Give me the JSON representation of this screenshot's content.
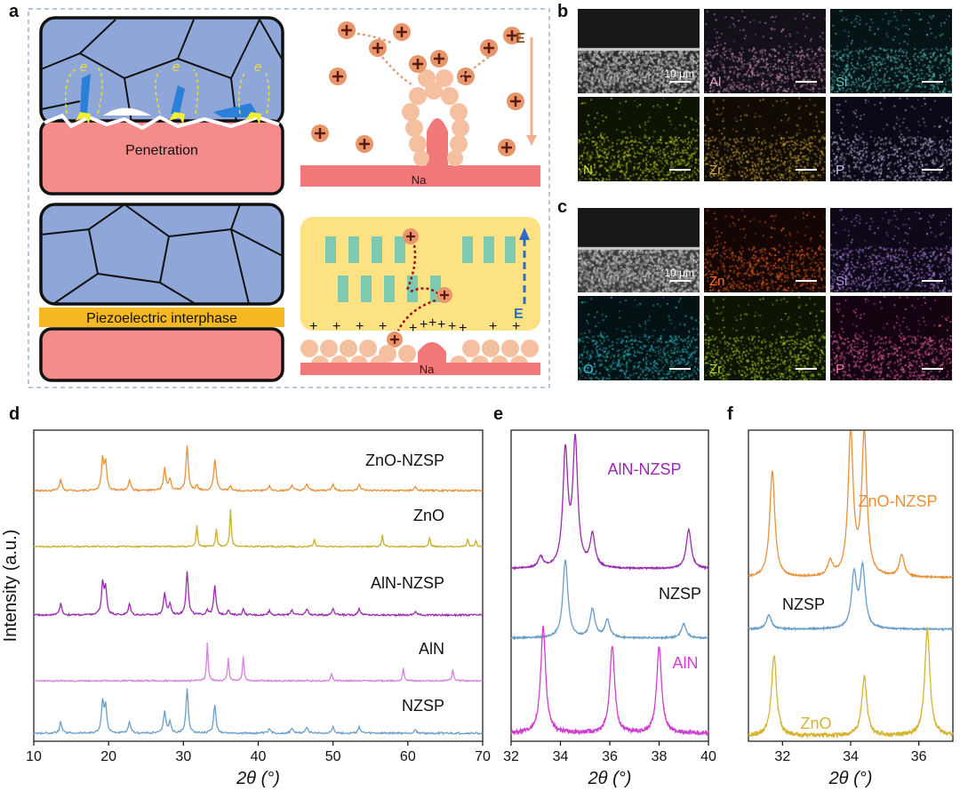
{
  "panels": {
    "a": "a",
    "b": "b",
    "c": "c",
    "d": "d",
    "e": "e",
    "f": "f"
  },
  "schematic": {
    "top_left_label": "Penetration",
    "bottom_left_label": "Piezoelectric interphase",
    "na_label": "Na",
    "field_label": "E",
    "electron_label": "e",
    "electron_sup": "-",
    "plus": "+",
    "minus": "-"
  },
  "eds_b": {
    "scale_text": "10 μm",
    "tiles": [
      {
        "label": "",
        "color": "#ffffff",
        "bg": "#2a2a2a",
        "type": "sem"
      },
      {
        "label": "Al",
        "color": "#e0a0c0",
        "bg": "#141018",
        "type": "map"
      },
      {
        "label": "Si",
        "color": "#5ec8c8",
        "bg": "#061416",
        "type": "map"
      },
      {
        "label": "N",
        "color": "#d8e020",
        "bg": "#0e1404",
        "type": "map"
      },
      {
        "label": "Zr",
        "color": "#e0b040",
        "bg": "#100c04",
        "type": "map"
      },
      {
        "label": "P",
        "color": "#d0c0f0",
        "bg": "#0a0a16",
        "type": "map"
      }
    ]
  },
  "eds_c": {
    "scale_text": "10 μm",
    "tiles": [
      {
        "label": "",
        "color": "#ffffff",
        "bg": "#3a3a3a",
        "type": "sem"
      },
      {
        "label": "Zn",
        "color": "#ff6a20",
        "bg": "#140604",
        "type": "map"
      },
      {
        "label": "Si",
        "color": "#b890f0",
        "bg": "#0e0818",
        "type": "map"
      },
      {
        "label": "O",
        "color": "#30c8d8",
        "bg": "#041214",
        "type": "map"
      },
      {
        "label": "Zr",
        "color": "#b8e020",
        "bg": "#0c1404",
        "type": "map"
      },
      {
        "label": "P",
        "color": "#ff70b0",
        "bg": "#140410",
        "type": "map"
      }
    ]
  },
  "chart_data": [
    {
      "type": "line",
      "panel": "d",
      "xlabel": "2θ (°)",
      "ylabel": "Intensity (a.u.)",
      "xlim": [
        10,
        70
      ],
      "xticks": [
        10,
        20,
        30,
        40,
        50,
        60,
        70
      ],
      "series": [
        {
          "name": "ZnO-NZSP",
          "color": "#e8913a",
          "kind": "nzsp",
          "extra_peaks": [
            31.8,
            34.4,
            36.3
          ]
        },
        {
          "name": "ZnO",
          "color": "#c9b030",
          "kind": "sticks",
          "peaks": [
            [
              31.8,
              0.55
            ],
            [
              34.4,
              0.45
            ],
            [
              36.3,
              1.0
            ],
            [
              47.5,
              0.2
            ],
            [
              56.6,
              0.3
            ],
            [
              62.9,
              0.25
            ],
            [
              68.0,
              0.2
            ],
            [
              69.1,
              0.15
            ]
          ]
        },
        {
          "name": "AlN-NZSP",
          "color": "#9a2ab0",
          "kind": "nzsp",
          "extra_peaks": [
            33.2,
            36.0,
            38.0
          ]
        },
        {
          "name": "AlN",
          "color": "#d880e0",
          "kind": "sticks",
          "peaks": [
            [
              33.2,
              1.0
            ],
            [
              36.0,
              0.6
            ],
            [
              38.0,
              0.65
            ],
            [
              49.8,
              0.2
            ],
            [
              59.4,
              0.35
            ],
            [
              66.0,
              0.3
            ]
          ]
        },
        {
          "name": "NZSP",
          "color": "#6a9ec8",
          "kind": "nzsp",
          "extra_peaks": []
        }
      ]
    },
    {
      "type": "line",
      "panel": "e",
      "xlabel": "2θ (°)",
      "xlim": [
        32,
        40
      ],
      "xticks": [
        32,
        34,
        36,
        38,
        40
      ],
      "series": [
        {
          "name": "AlN-NZSP",
          "color": "#9a2ab0",
          "peaks": [
            [
              34.2,
              3.2
            ],
            [
              34.6,
              3.5
            ],
            [
              35.3,
              0.9
            ],
            [
              39.2,
              1.1
            ],
            [
              33.2,
              0.3
            ]
          ]
        },
        {
          "name": "NZSP",
          "color": "#6a9ec8",
          "peaks": [
            [
              34.2,
              2.2
            ],
            [
              35.3,
              0.8
            ],
            [
              35.9,
              0.5
            ],
            [
              39.0,
              0.4
            ]
          ]
        },
        {
          "name": "AlN",
          "color": "#d040d0",
          "peaks": [
            [
              33.3,
              1.0
            ],
            [
              36.1,
              0.8
            ],
            [
              38.0,
              0.8
            ]
          ]
        }
      ]
    },
    {
      "type": "line",
      "panel": "f",
      "xlabel": "2θ (°)",
      "xlim": [
        31,
        37
      ],
      "xticks": [
        32,
        34,
        36
      ],
      "series": [
        {
          "name": "ZnO-NZSP",
          "color": "#e8913a",
          "peaks": [
            [
              31.7,
              3.0
            ],
            [
              34.0,
              4.0
            ],
            [
              34.4,
              4.0
            ],
            [
              33.4,
              0.4
            ],
            [
              35.5,
              0.6
            ]
          ]
        },
        {
          "name": "NZSP",
          "color": "#6a9ec8",
          "peaks": [
            [
              31.6,
              0.4
            ],
            [
              34.1,
              1.5
            ],
            [
              34.35,
              1.7
            ]
          ]
        },
        {
          "name": "ZnO",
          "color": "#d4b430",
          "peaks": [
            [
              31.75,
              0.75
            ],
            [
              34.4,
              0.55
            ],
            [
              36.25,
              1.0
            ]
          ]
        }
      ]
    }
  ]
}
